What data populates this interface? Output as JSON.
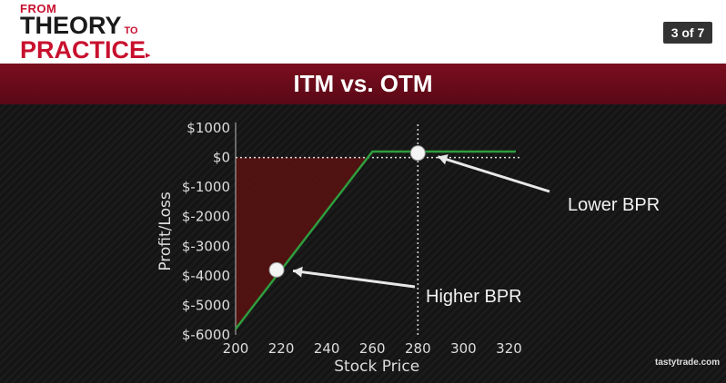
{
  "header": {
    "logo_from": "FROM",
    "logo_theory": "THEORY",
    "logo_to": "TO",
    "logo_practice": "PRACTICE",
    "slide_counter": "3 of 7"
  },
  "title": "ITM vs. OTM",
  "chart_data": {
    "type": "line",
    "title": "",
    "xlabel": "Stock Price",
    "ylabel": "Profit/Loss",
    "xlim": [
      200,
      325
    ],
    "ylim": [
      -6000,
      1000
    ],
    "x_ticks": [
      "200",
      "220",
      "240",
      "260",
      "280",
      "300",
      "320"
    ],
    "y_ticks": [
      "$1000",
      "$0",
      "$-1000",
      "$-2000",
      "$-3000",
      "$-4000",
      "$-5000",
      "$-6000"
    ],
    "series": [
      {
        "x": [
          200,
          260,
          323
        ],
        "y": [
          -5800,
          200,
          200
        ]
      }
    ],
    "markers": [
      {
        "x": 280,
        "y": 150,
        "label": "Lower BPR"
      },
      {
        "x": 218,
        "y": -3800,
        "label": "Higher BPR"
      }
    ],
    "vertical_line_x": 280,
    "loss_region_color": "#5a1010",
    "line_color": "#2e9e3e"
  },
  "brand": "tastytrade.com"
}
